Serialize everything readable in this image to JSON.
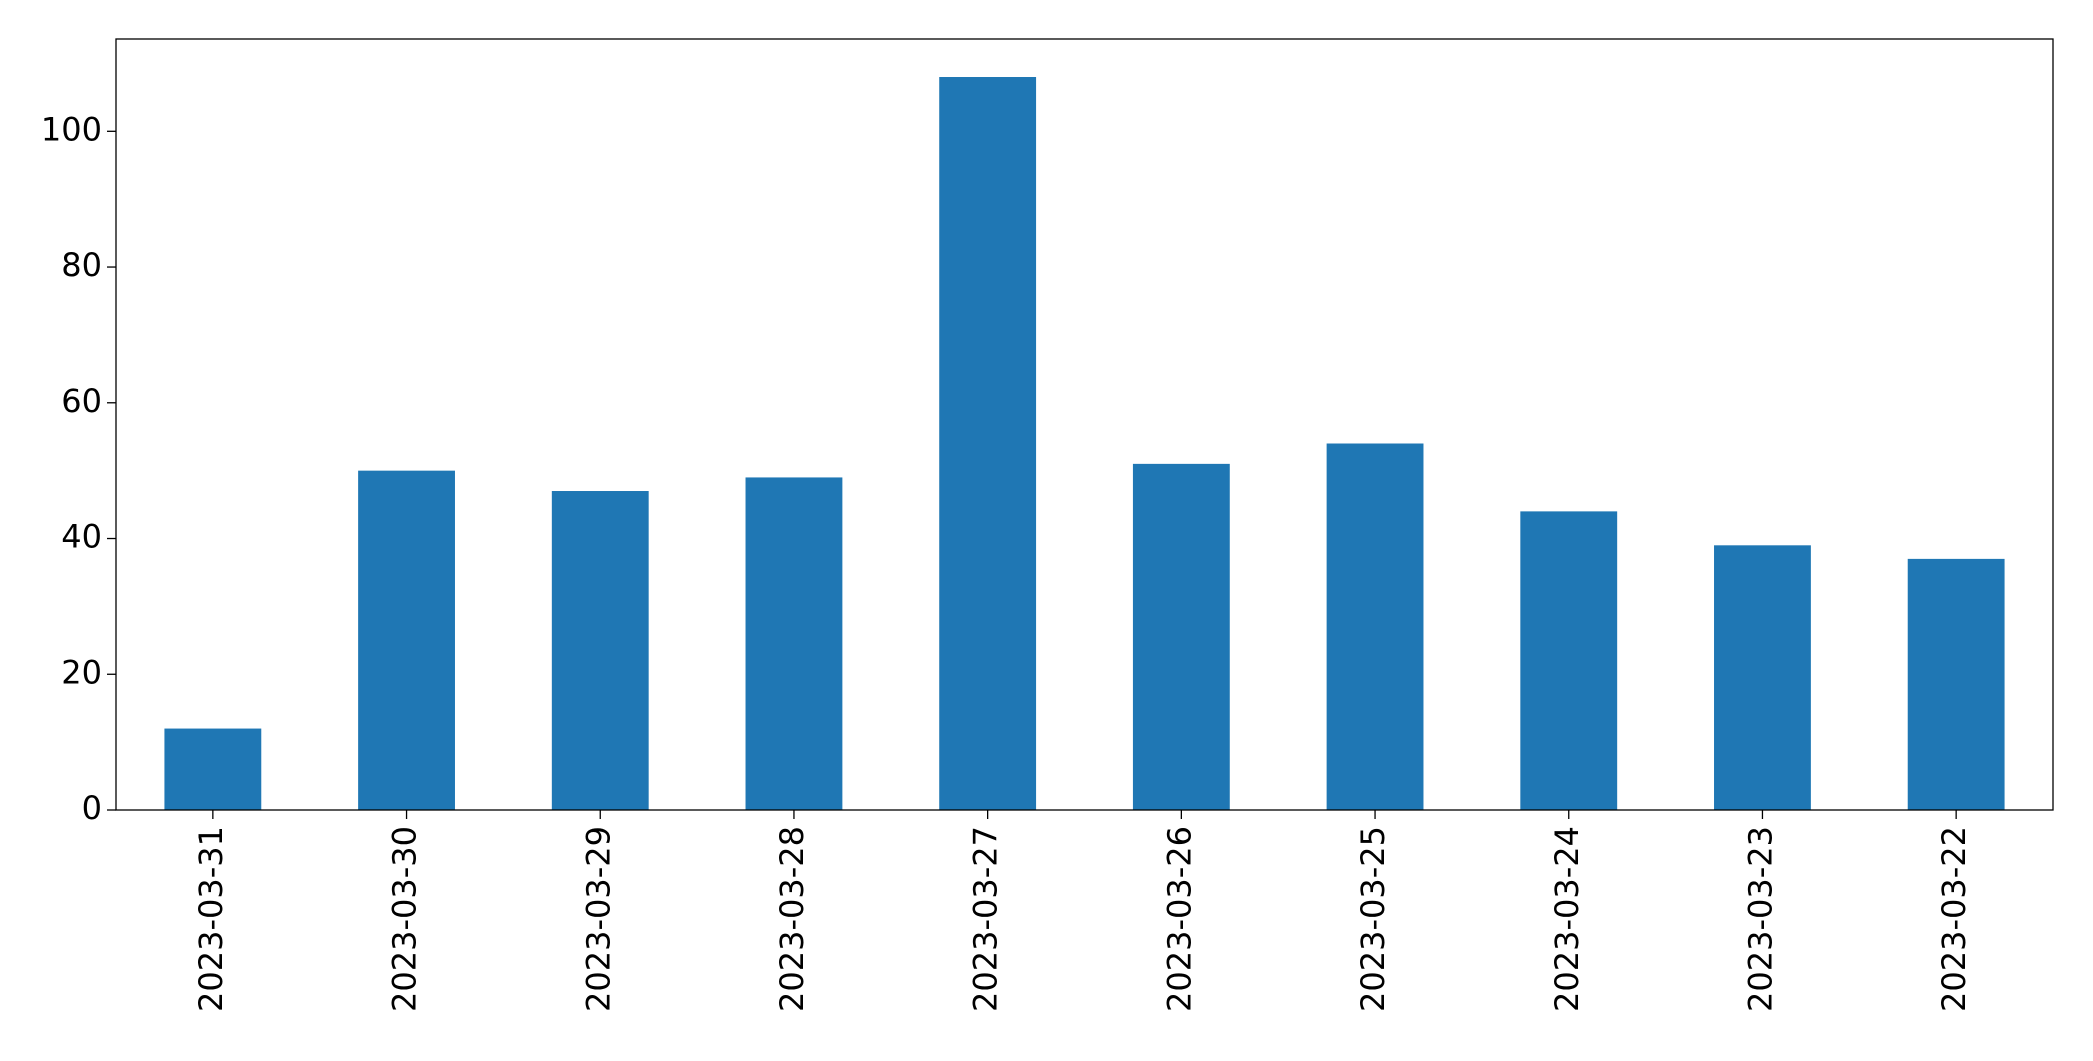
{
  "chart_data": {
    "type": "bar",
    "categories": [
      "2023-03-31",
      "2023-03-30",
      "2023-03-29",
      "2023-03-28",
      "2023-03-27",
      "2023-03-26",
      "2023-03-25",
      "2023-03-24",
      "2023-03-23",
      "2023-03-22"
    ],
    "values": [
      12,
      50,
      47,
      49,
      108,
      51,
      54,
      44,
      39,
      37
    ],
    "color": "#1f77b4",
    "ylim": [
      0,
      113.6
    ],
    "yticks": [
      0,
      20,
      40,
      60,
      80,
      100
    ],
    "grid": false
  }
}
